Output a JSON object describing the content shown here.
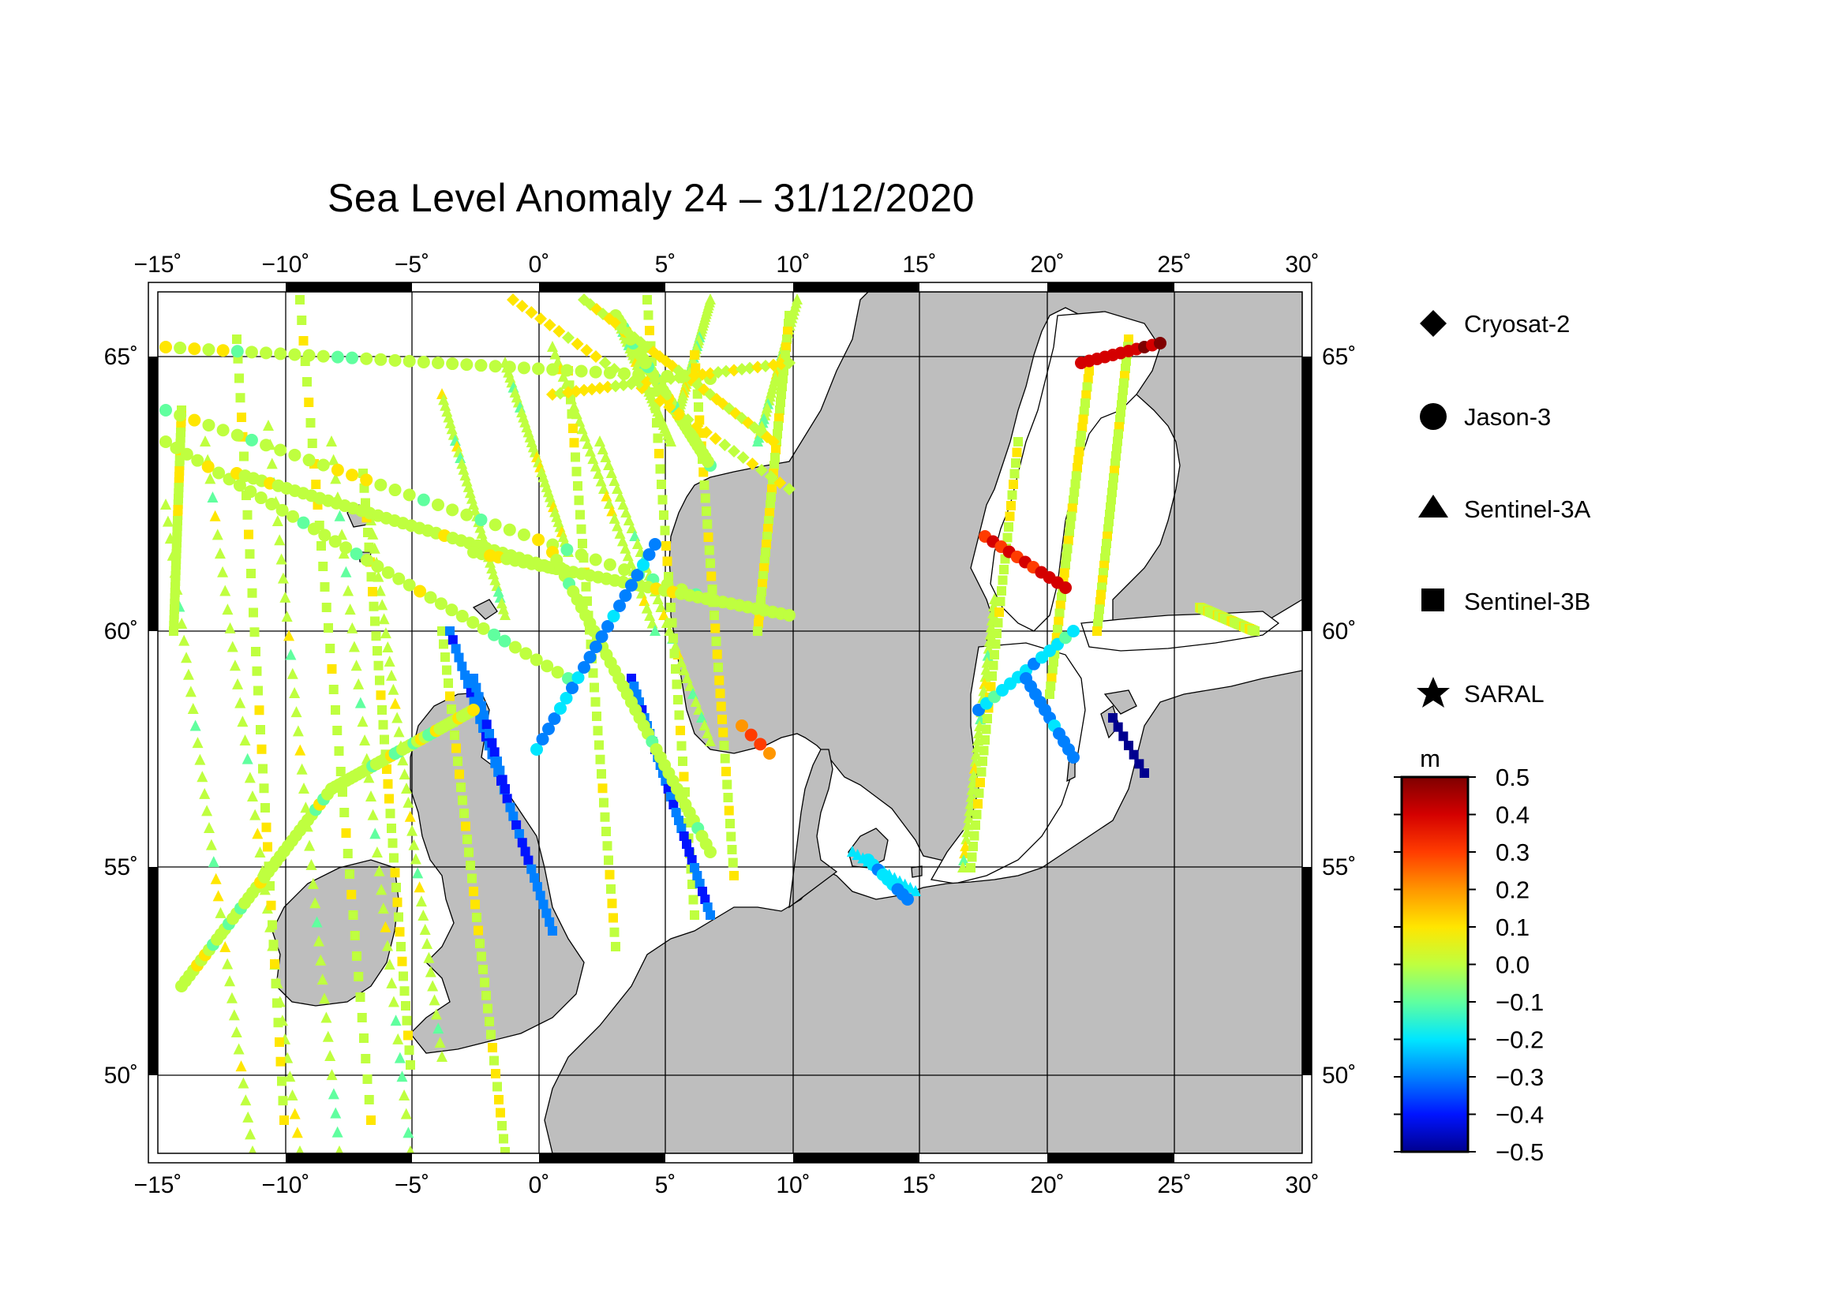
{
  "title": "Sea Level Anomaly 24 – 31/12/2020",
  "map": {
    "lon_range": [
      -15.5,
      30.5
    ],
    "lat_range": [
      48.3,
      66.3
    ],
    "lon_ticks": [
      "−15˚",
      "−10˚",
      "−5˚",
      "0˚",
      "5˚",
      "10˚",
      "15˚",
      "20˚",
      "25˚",
      "30˚"
    ],
    "lat_ticks": [
      "50˚",
      "55˚",
      "60˚",
      "65˚"
    ],
    "grid": true,
    "land_color": "#bebebe",
    "sea_color": "#ffffff"
  },
  "legend": {
    "symbols": [
      {
        "name": "Cryosat-2",
        "icon": "diamond-icon"
      },
      {
        "name": "Jason-3",
        "icon": "circle-icon"
      },
      {
        "name": "Sentinel-3A",
        "icon": "triangle-icon"
      },
      {
        "name": "Sentinel-3B",
        "icon": "square-icon"
      },
      {
        "name": "SARAL",
        "icon": "star-icon"
      }
    ]
  },
  "colorbar": {
    "unit": "m",
    "range": [
      -0.5,
      0.5
    ],
    "tick_labels": [
      "0.5",
      "0.4",
      "0.3",
      "0.2",
      "0.1",
      "0.0",
      "−0.1",
      "−0.2",
      "−0.3",
      "−0.4",
      "−0.5"
    ],
    "colors": [
      "#7f0000",
      "#d40000",
      "#ff3c00",
      "#ff9600",
      "#ffe600",
      "#bfff3f",
      "#60ff9f",
      "#00e6ff",
      "#0080ff",
      "#0014ff",
      "#00008f"
    ]
  }
}
